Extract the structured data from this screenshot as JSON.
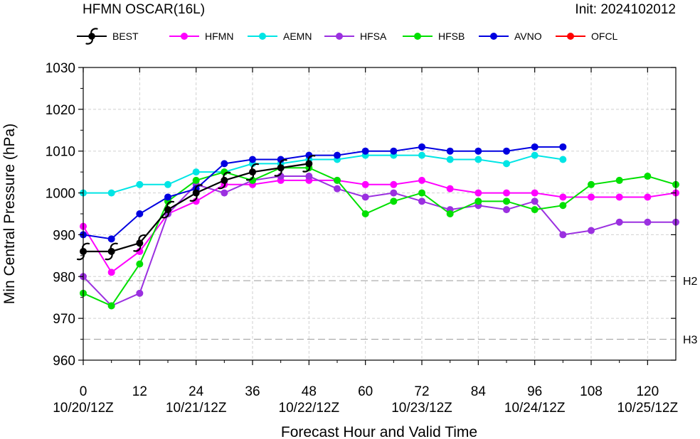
{
  "chart_data": {
    "type": "line",
    "title": "HFMN OSCAR(16L)",
    "init_label": "Init: 2024102012",
    "xlabel": "Forecast Hour and Valid Time",
    "ylabel": "Min Central Pressure (hPa)",
    "xlim": [
      0,
      126
    ],
    "ylim": [
      960,
      1030
    ],
    "grid": true,
    "legend_position": "top",
    "x_ticks": [
      0,
      12,
      24,
      36,
      48,
      60,
      72,
      84,
      96,
      108,
      120
    ],
    "x_date_ticks": [
      {
        "x": 0,
        "label": "10/20/12Z"
      },
      {
        "x": 24,
        "label": "10/21/12Z"
      },
      {
        "x": 48,
        "label": "10/22/12Z"
      },
      {
        "x": 72,
        "label": "10/23/12Z"
      },
      {
        "x": 96,
        "label": "10/24/12Z"
      },
      {
        "x": 120,
        "label": "10/25/12Z"
      }
    ],
    "y_ticks": [
      960,
      970,
      980,
      990,
      1000,
      1010,
      1020,
      1030
    ],
    "reference_lines": [
      {
        "label": "H2",
        "y": 979
      },
      {
        "label": "H3",
        "y": 965
      }
    ],
    "series": [
      {
        "name": "HFMN",
        "color": "#ff00ff",
        "x": [
          0,
          6,
          12,
          18,
          24,
          30,
          36,
          42,
          48,
          54,
          60,
          66,
          72,
          78,
          84,
          90,
          96,
          102,
          108,
          114,
          120,
          126
        ],
        "values": [
          992,
          981,
          986,
          995,
          998,
          1002,
          1002,
          1003,
          1003,
          1003,
          1002,
          1002,
          1003,
          1001,
          1000,
          1000,
          1000,
          999,
          999,
          999,
          999,
          1000
        ]
      },
      {
        "name": "AEMN",
        "color": "#00e5e5",
        "x": [
          0,
          6,
          12,
          18,
          24,
          30,
          36,
          42,
          48,
          54,
          60,
          66,
          72,
          78,
          84,
          90,
          96,
          102
        ],
        "values": [
          1000,
          1000,
          1002,
          1002,
          1005,
          1005,
          1007,
          1007,
          1008,
          1008,
          1009,
          1009,
          1009,
          1008,
          1008,
          1007,
          1009,
          1008
        ]
      },
      {
        "name": "HFSA",
        "color": "#9b30e0",
        "x": [
          0,
          6,
          12,
          18,
          24,
          30,
          36,
          42,
          48,
          54,
          60,
          66,
          72,
          78,
          84,
          90,
          96,
          102,
          108,
          114,
          120,
          126
        ],
        "values": [
          980,
          973,
          976,
          995,
          1002,
          1000,
          1003,
          1004,
          1004,
          1001,
          999,
          1000,
          998,
          996,
          997,
          996,
          998,
          990,
          991,
          993,
          993,
          993
        ]
      },
      {
        "name": "HFSB",
        "color": "#00e000",
        "x": [
          0,
          6,
          12,
          18,
          24,
          30,
          36,
          42,
          48,
          54,
          60,
          66,
          72,
          78,
          84,
          90,
          96,
          102,
          108,
          114,
          120,
          126
        ],
        "values": [
          976,
          973,
          983,
          998,
          1003,
          1005,
          1003,
          1006,
          1006,
          1003,
          995,
          998,
          1000,
          995,
          998,
          998,
          996,
          997,
          1002,
          1003,
          1004,
          1002
        ]
      },
      {
        "name": "AVNO",
        "color": "#0000e0",
        "x": [
          0,
          6,
          12,
          18,
          24,
          30,
          36,
          42,
          48,
          54,
          60,
          66,
          72,
          78,
          84,
          90,
          96,
          102
        ],
        "values": [
          990,
          989,
          995,
          999,
          1001,
          1007,
          1008,
          1008,
          1009,
          1009,
          1010,
          1010,
          1011,
          1010,
          1010,
          1010,
          1011,
          1011
        ]
      },
      {
        "name": "OFCL",
        "color": "#ff0000",
        "x": [],
        "values": []
      },
      {
        "name": "BEST",
        "color": "#000000",
        "x": [
          0,
          6,
          12,
          18,
          24,
          30,
          36,
          42,
          48
        ],
        "values": [
          986,
          986,
          988,
          996,
          1000,
          1003,
          1005,
          1006,
          1007
        ]
      }
    ],
    "legend": [
      {
        "name": "BEST",
        "color": "#000000",
        "marker": "hurricane-icon"
      },
      {
        "name": "HFMN",
        "color": "#ff00ff",
        "marker": "dot"
      },
      {
        "name": "AEMN",
        "color": "#00e5e5",
        "marker": "dot"
      },
      {
        "name": "HFSA",
        "color": "#9b30e0",
        "marker": "dot"
      },
      {
        "name": "HFSB",
        "color": "#00e000",
        "marker": "dot"
      },
      {
        "name": "AVNO",
        "color": "#0000e0",
        "marker": "dot"
      },
      {
        "name": "OFCL",
        "color": "#ff0000",
        "marker": "dot"
      }
    ]
  }
}
